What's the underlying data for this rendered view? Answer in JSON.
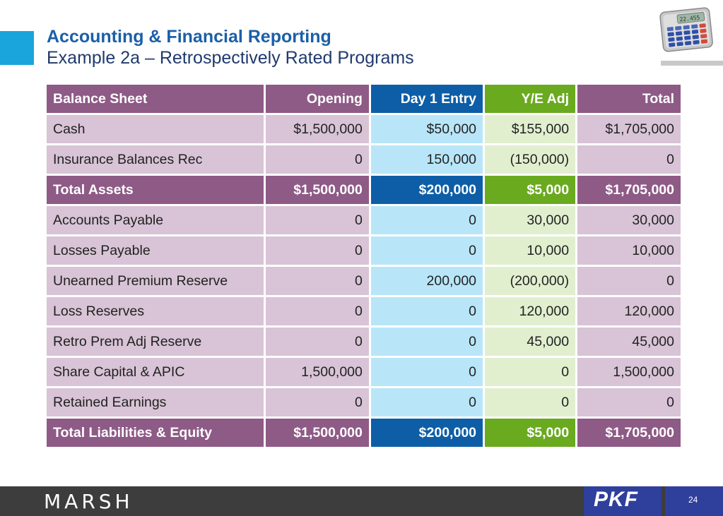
{
  "header": {
    "title": "Accounting & Financial Reporting",
    "subtitle": "Example 2a – Retrospectively Rated Programs"
  },
  "calculator": {
    "display": "22.455"
  },
  "table": {
    "columns": [
      "Balance Sheet",
      "Opening",
      "Day 1 Entry",
      "Y/E Adj",
      "Total"
    ],
    "rows": [
      {
        "label": "Cash",
        "values": [
          "$1,500,000",
          "$50,000",
          "$155,000",
          "$1,705,000"
        ]
      },
      {
        "label": "Insurance Balances Rec",
        "values": [
          "0",
          "150,000",
          "(150,000)",
          "0"
        ]
      },
      {
        "label": "Total Assets",
        "values": [
          "$1,500,000",
          "$200,000",
          "$5,000",
          "$1,705,000"
        ],
        "total": true
      },
      {
        "label": "Accounts Payable",
        "values": [
          "0",
          "0",
          "30,000",
          "30,000"
        ]
      },
      {
        "label": "Losses Payable",
        "values": [
          "0",
          "0",
          "10,000",
          "10,000"
        ]
      },
      {
        "label": "Unearned Premium Reserve",
        "values": [
          "0",
          "200,000",
          "(200,000)",
          "0"
        ]
      },
      {
        "label": "Loss Reserves",
        "values": [
          "0",
          "0",
          "120,000",
          "120,000"
        ]
      },
      {
        "label": "Retro Prem Adj Reserve",
        "values": [
          "0",
          "0",
          "45,000",
          "45,000"
        ]
      },
      {
        "label": "Share Capital & APIC",
        "values": [
          "1,500,000",
          "0",
          "0",
          "1,500,000"
        ]
      },
      {
        "label": "Retained Earnings",
        "values": [
          "0",
          "0",
          "0",
          "0"
        ]
      },
      {
        "label": "Total Liabilities & Equity",
        "values": [
          "$1,500,000",
          "$200,000",
          "$5,000",
          "$1,705,000"
        ],
        "total": true
      }
    ]
  },
  "footer": {
    "brand": "MARSH",
    "partner": "PKF",
    "page_number": "24"
  },
  "colors": {
    "purple_header": "#8e5a86",
    "purple_cell": "#d8c4d6",
    "blue_header": "#0d5ea7",
    "blue_cell": "#b8e6f8",
    "green_header": "#6aaa1f",
    "green_cell": "#e1efcf",
    "title_blue": "#1b5fa8"
  }
}
